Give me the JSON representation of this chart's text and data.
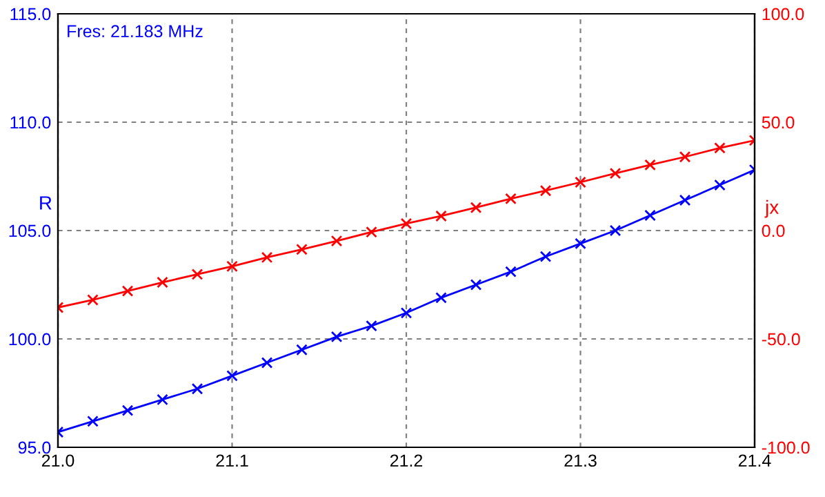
{
  "chart_data": {
    "type": "line",
    "ylabel": "R",
    "y2label": "jx",
    "annotations": [
      "Fres: 21.183 MHz"
    ],
    "x": [
      21.0,
      21.02,
      21.04,
      21.06,
      21.08,
      21.1,
      21.12,
      21.14,
      21.16,
      21.18,
      21.2,
      21.22,
      21.24,
      21.26,
      21.28,
      21.3,
      21.32,
      21.34,
      21.36,
      21.38,
      21.4
    ],
    "series": [
      {
        "color": "#0000ff",
        "values": [
          95.7,
          96.2,
          96.7,
          97.2,
          97.7,
          98.3,
          98.9,
          99.5,
          100.1,
          100.6,
          101.2,
          101.9,
          102.5,
          103.1,
          103.8,
          104.4,
          105.0,
          105.7,
          106.4,
          107.1,
          107.8
        ]
      },
      {
        "color": "#ff0000",
        "axis": "y2",
        "values": [
          -35.5,
          -32,
          -27.9,
          -23.9,
          -20.2,
          -16.5,
          -12.4,
          -8.7,
          -4.8,
          -0.7,
          3.2,
          6.7,
          10.6,
          14.7,
          18.4,
          22.3,
          26.4,
          30.3,
          34,
          38.1,
          41.6
        ]
      }
    ],
    "xlim": [
      21.0,
      21.4
    ],
    "xticks": [
      {
        "value": 21.0,
        "label": "21.0"
      },
      {
        "value": 21.1,
        "label": "21.1"
      },
      {
        "value": 21.2,
        "label": "21.2"
      },
      {
        "value": 21.3,
        "label": "21.3"
      },
      {
        "value": 21.4,
        "label": "21.4"
      }
    ],
    "ylim": [
      95,
      115
    ],
    "yticks": [
      {
        "value": 95,
        "label": "95.0"
      },
      {
        "value": 100,
        "label": "100.0"
      },
      {
        "value": 105,
        "label": "105.0"
      },
      {
        "value": 110,
        "label": "110.0"
      },
      {
        "value": 115,
        "label": "115.0"
      }
    ],
    "y2lim": [
      -100,
      100
    ],
    "y2ticks": [
      {
        "value": -100,
        "label": "-100.0"
      },
      {
        "value": -50,
        "label": "-50.0"
      },
      {
        "value": 0,
        "label": "0.0"
      },
      {
        "value": 50,
        "label": "50.0"
      },
      {
        "value": 100,
        "label": "100.0"
      }
    ],
    "grid": true,
    "marker": "cross",
    "line_style": "solid"
  }
}
